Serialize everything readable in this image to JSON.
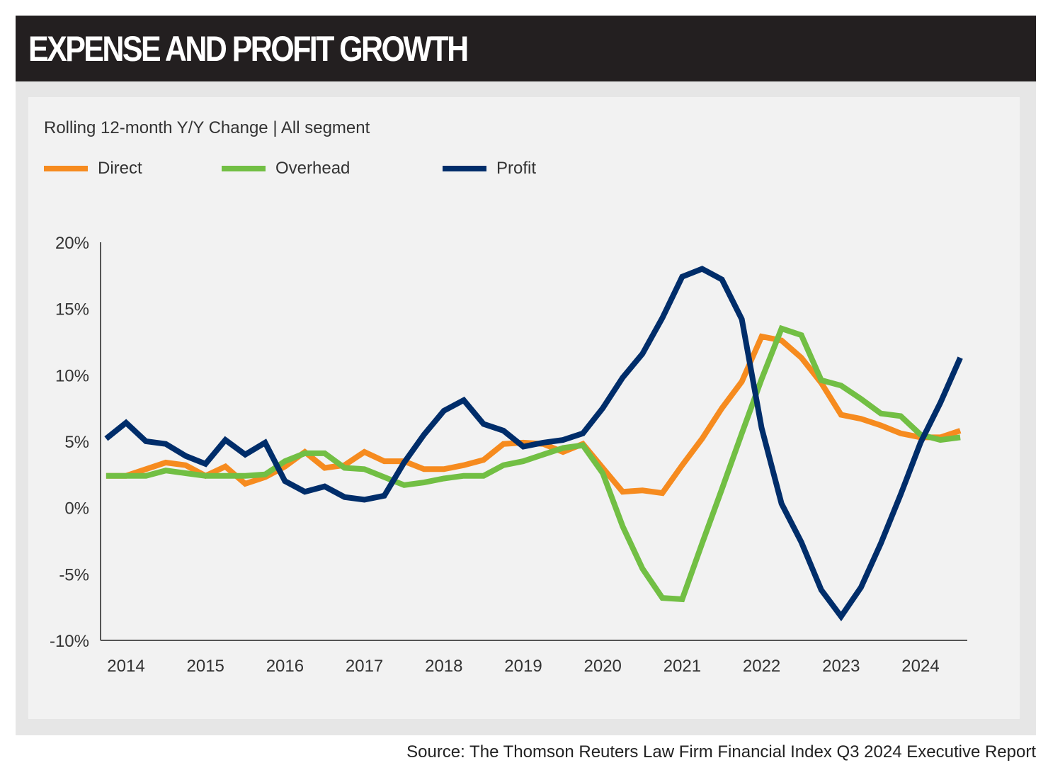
{
  "header": {
    "title": "EXPENSE AND PROFIT GROWTH"
  },
  "source": "Source: The Thomson Reuters Law Firm Financial Index Q3 2024 Executive Report",
  "chart_data": {
    "type": "line",
    "subtitle": "Rolling 12-month Y/Y Change | All segment",
    "legend_placement": "top-left",
    "grid": false,
    "ylim": [
      -10,
      20
    ],
    "yticks": [
      20,
      15,
      10,
      5,
      0,
      -5,
      -10
    ],
    "ytick_labels": [
      "20%",
      "15%",
      "10%",
      "5%",
      "0%",
      "-5%",
      "-10%"
    ],
    "xticks": [
      "2014",
      "2015",
      "2016",
      "2017",
      "2018",
      "2019",
      "2020",
      "2021",
      "2022",
      "2023",
      "2024"
    ],
    "x_start": 2013.75,
    "x_step_years": 0.25,
    "series": [
      {
        "name": "Direct",
        "color": "#f68b1f",
        "values": [
          2.4,
          2.4,
          2.9,
          3.4,
          3.2,
          2.4,
          3.1,
          1.8,
          2.3,
          3.1,
          4.2,
          3.0,
          3.2,
          4.2,
          3.5,
          3.5,
          2.9,
          2.9,
          3.2,
          3.6,
          4.8,
          4.9,
          4.8,
          4.2,
          4.8,
          3.0,
          1.2,
          1.3,
          1.1,
          3.2,
          5.2,
          7.5,
          9.5,
          12.9,
          12.6,
          11.3,
          9.4,
          7.0,
          6.7,
          6.2,
          5.6,
          5.3,
          5.3,
          5.8
        ]
      },
      {
        "name": "Overhead",
        "color": "#72bf44",
        "values": [
          2.4,
          2.4,
          2.4,
          2.8,
          2.6,
          2.4,
          2.4,
          2.4,
          2.5,
          3.5,
          4.1,
          4.1,
          3.0,
          2.9,
          2.3,
          1.7,
          1.9,
          2.2,
          2.4,
          2.4,
          3.2,
          3.5,
          4.0,
          4.5,
          4.7,
          2.6,
          -1.4,
          -4.6,
          -6.8,
          -6.9,
          -2.7,
          1.4,
          5.6,
          9.7,
          13.5,
          13.0,
          9.6,
          9.2,
          8.2,
          7.1,
          6.9,
          5.5,
          5.1,
          5.3
        ]
      },
      {
        "name": "Profit",
        "color": "#002d6a",
        "values": [
          5.2,
          6.4,
          5.0,
          4.8,
          3.9,
          3.3,
          5.1,
          4.0,
          4.9,
          2.0,
          1.2,
          1.6,
          0.8,
          0.6,
          0.9,
          3.4,
          5.5,
          7.3,
          8.1,
          6.3,
          5.8,
          4.6,
          4.9,
          5.1,
          5.6,
          7.5,
          9.8,
          11.6,
          14.3,
          17.4,
          18.0,
          17.2,
          14.2,
          6.0,
          0.3,
          -2.6,
          -6.2,
          -8.2,
          -6.0,
          -2.7,
          1.0,
          4.9,
          7.9,
          11.3
        ]
      }
    ]
  }
}
